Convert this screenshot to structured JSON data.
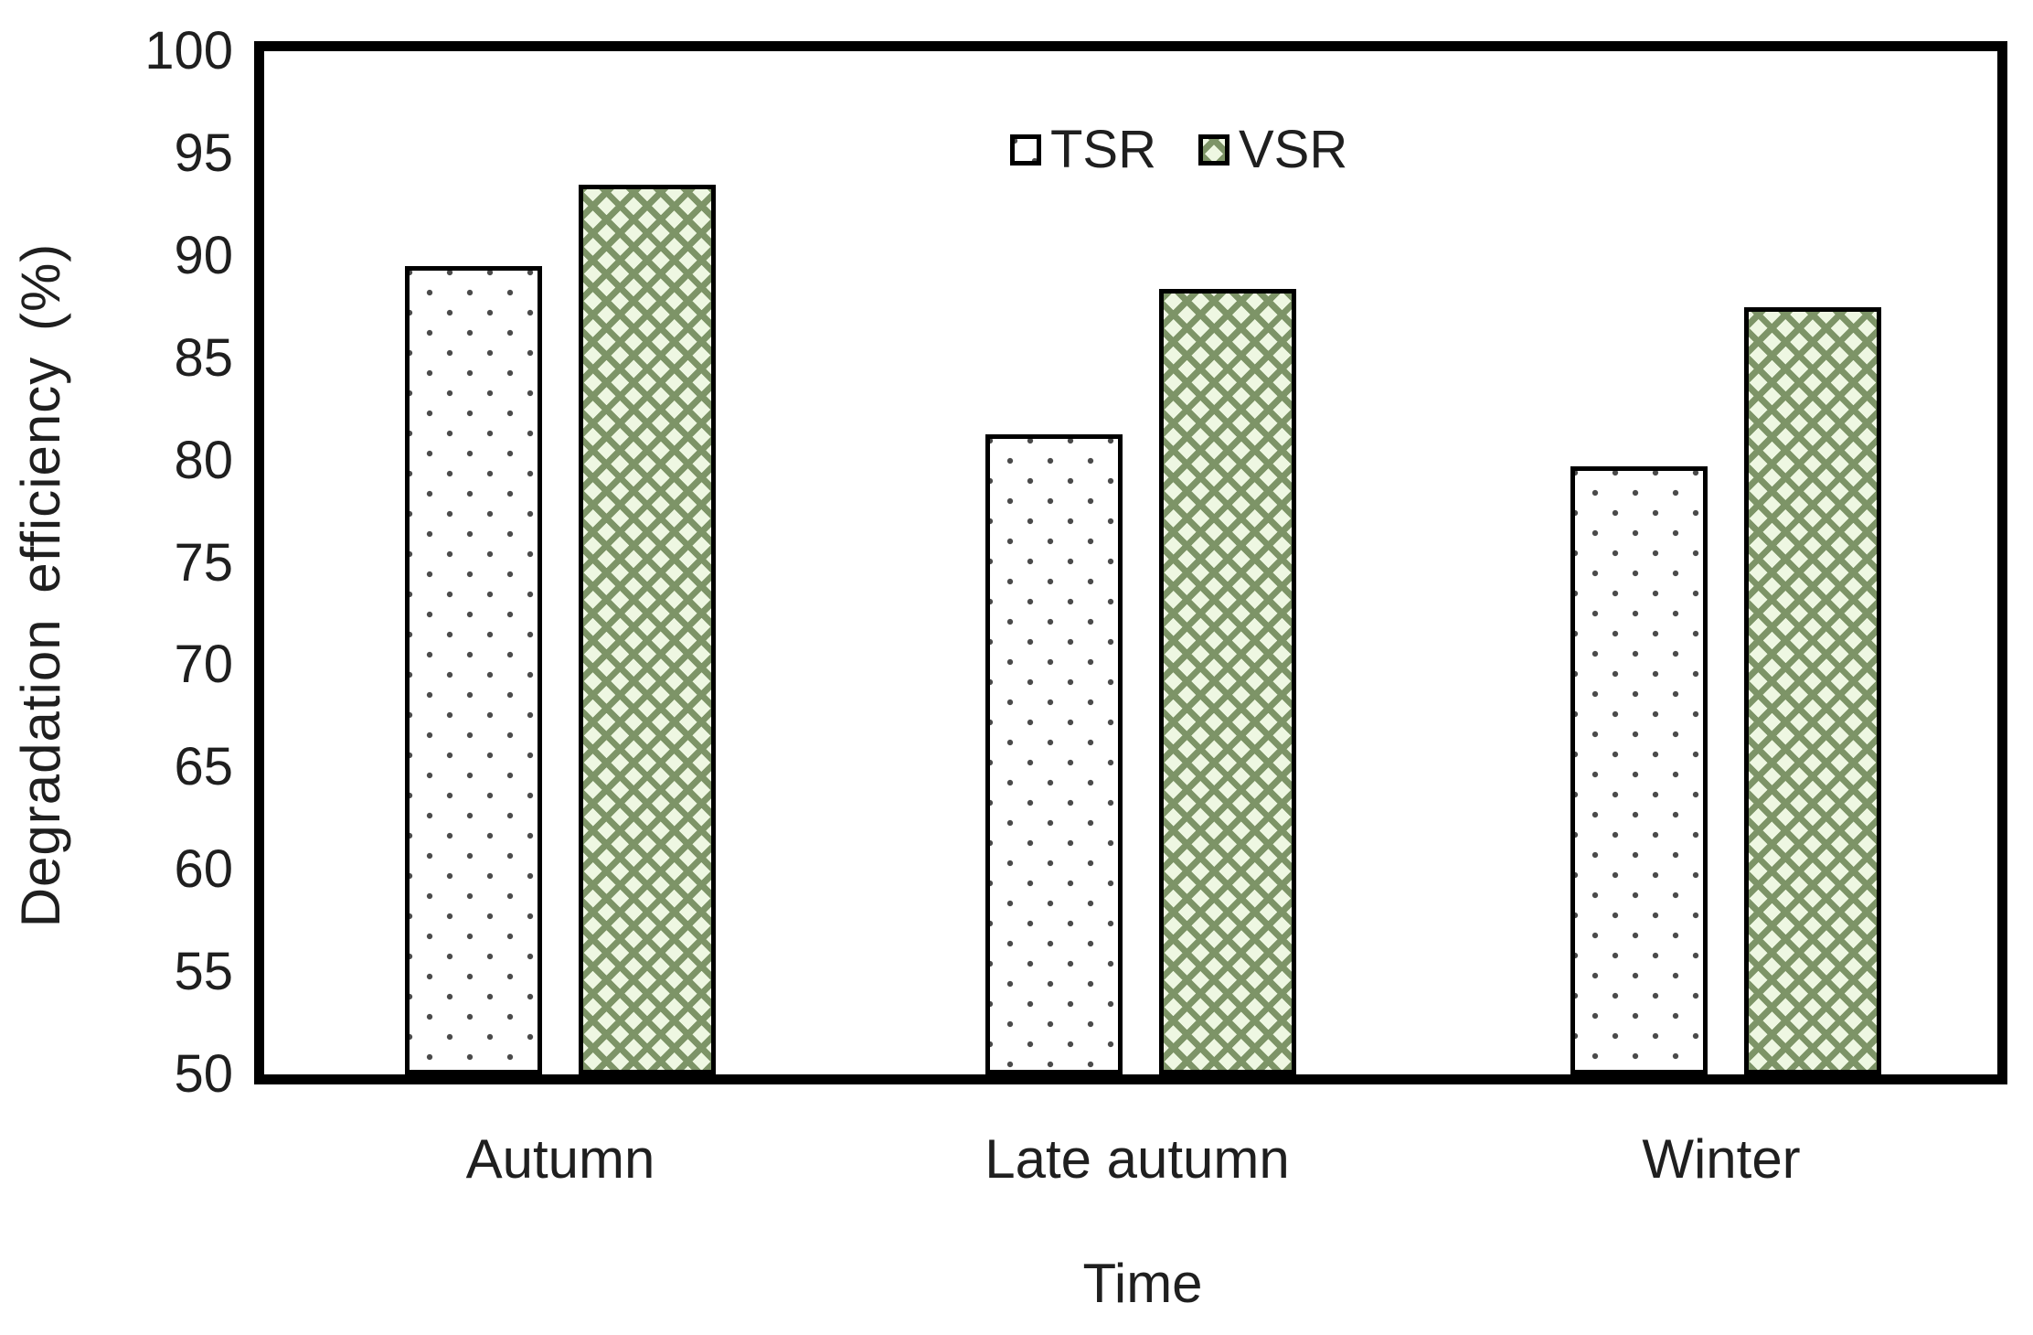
{
  "figure": {
    "background_color": "#ffffff",
    "text_color": "#1f1f1f",
    "axis_color": "#000000"
  },
  "chart_data": {
    "type": "bar",
    "title": "",
    "xlabel": "Time",
    "ylabel": "Degradation efficiency (%)",
    "categories": [
      "Autumn",
      "Late autumn",
      "Winter"
    ],
    "series": [
      {
        "name": "TSR",
        "values": [
          89.5,
          81.3,
          79.7
        ],
        "pattern": "dotted",
        "fill": "#ffffff",
        "pattern_color": "#4a4a4a"
      },
      {
        "name": "VSR",
        "values": [
          93.5,
          88.4,
          87.5
        ],
        "pattern": "diagonal-crosshatch",
        "fill": "#eef7e2",
        "pattern_color": "#7d9467"
      }
    ],
    "ylim": [
      50,
      100
    ],
    "yticks": [
      50,
      55,
      60,
      65,
      70,
      75,
      80,
      85,
      90,
      95,
      100
    ],
    "ytick_step": 5,
    "grid": false,
    "legend_position": "top-center-inside",
    "bar_border_color": "#000000"
  }
}
